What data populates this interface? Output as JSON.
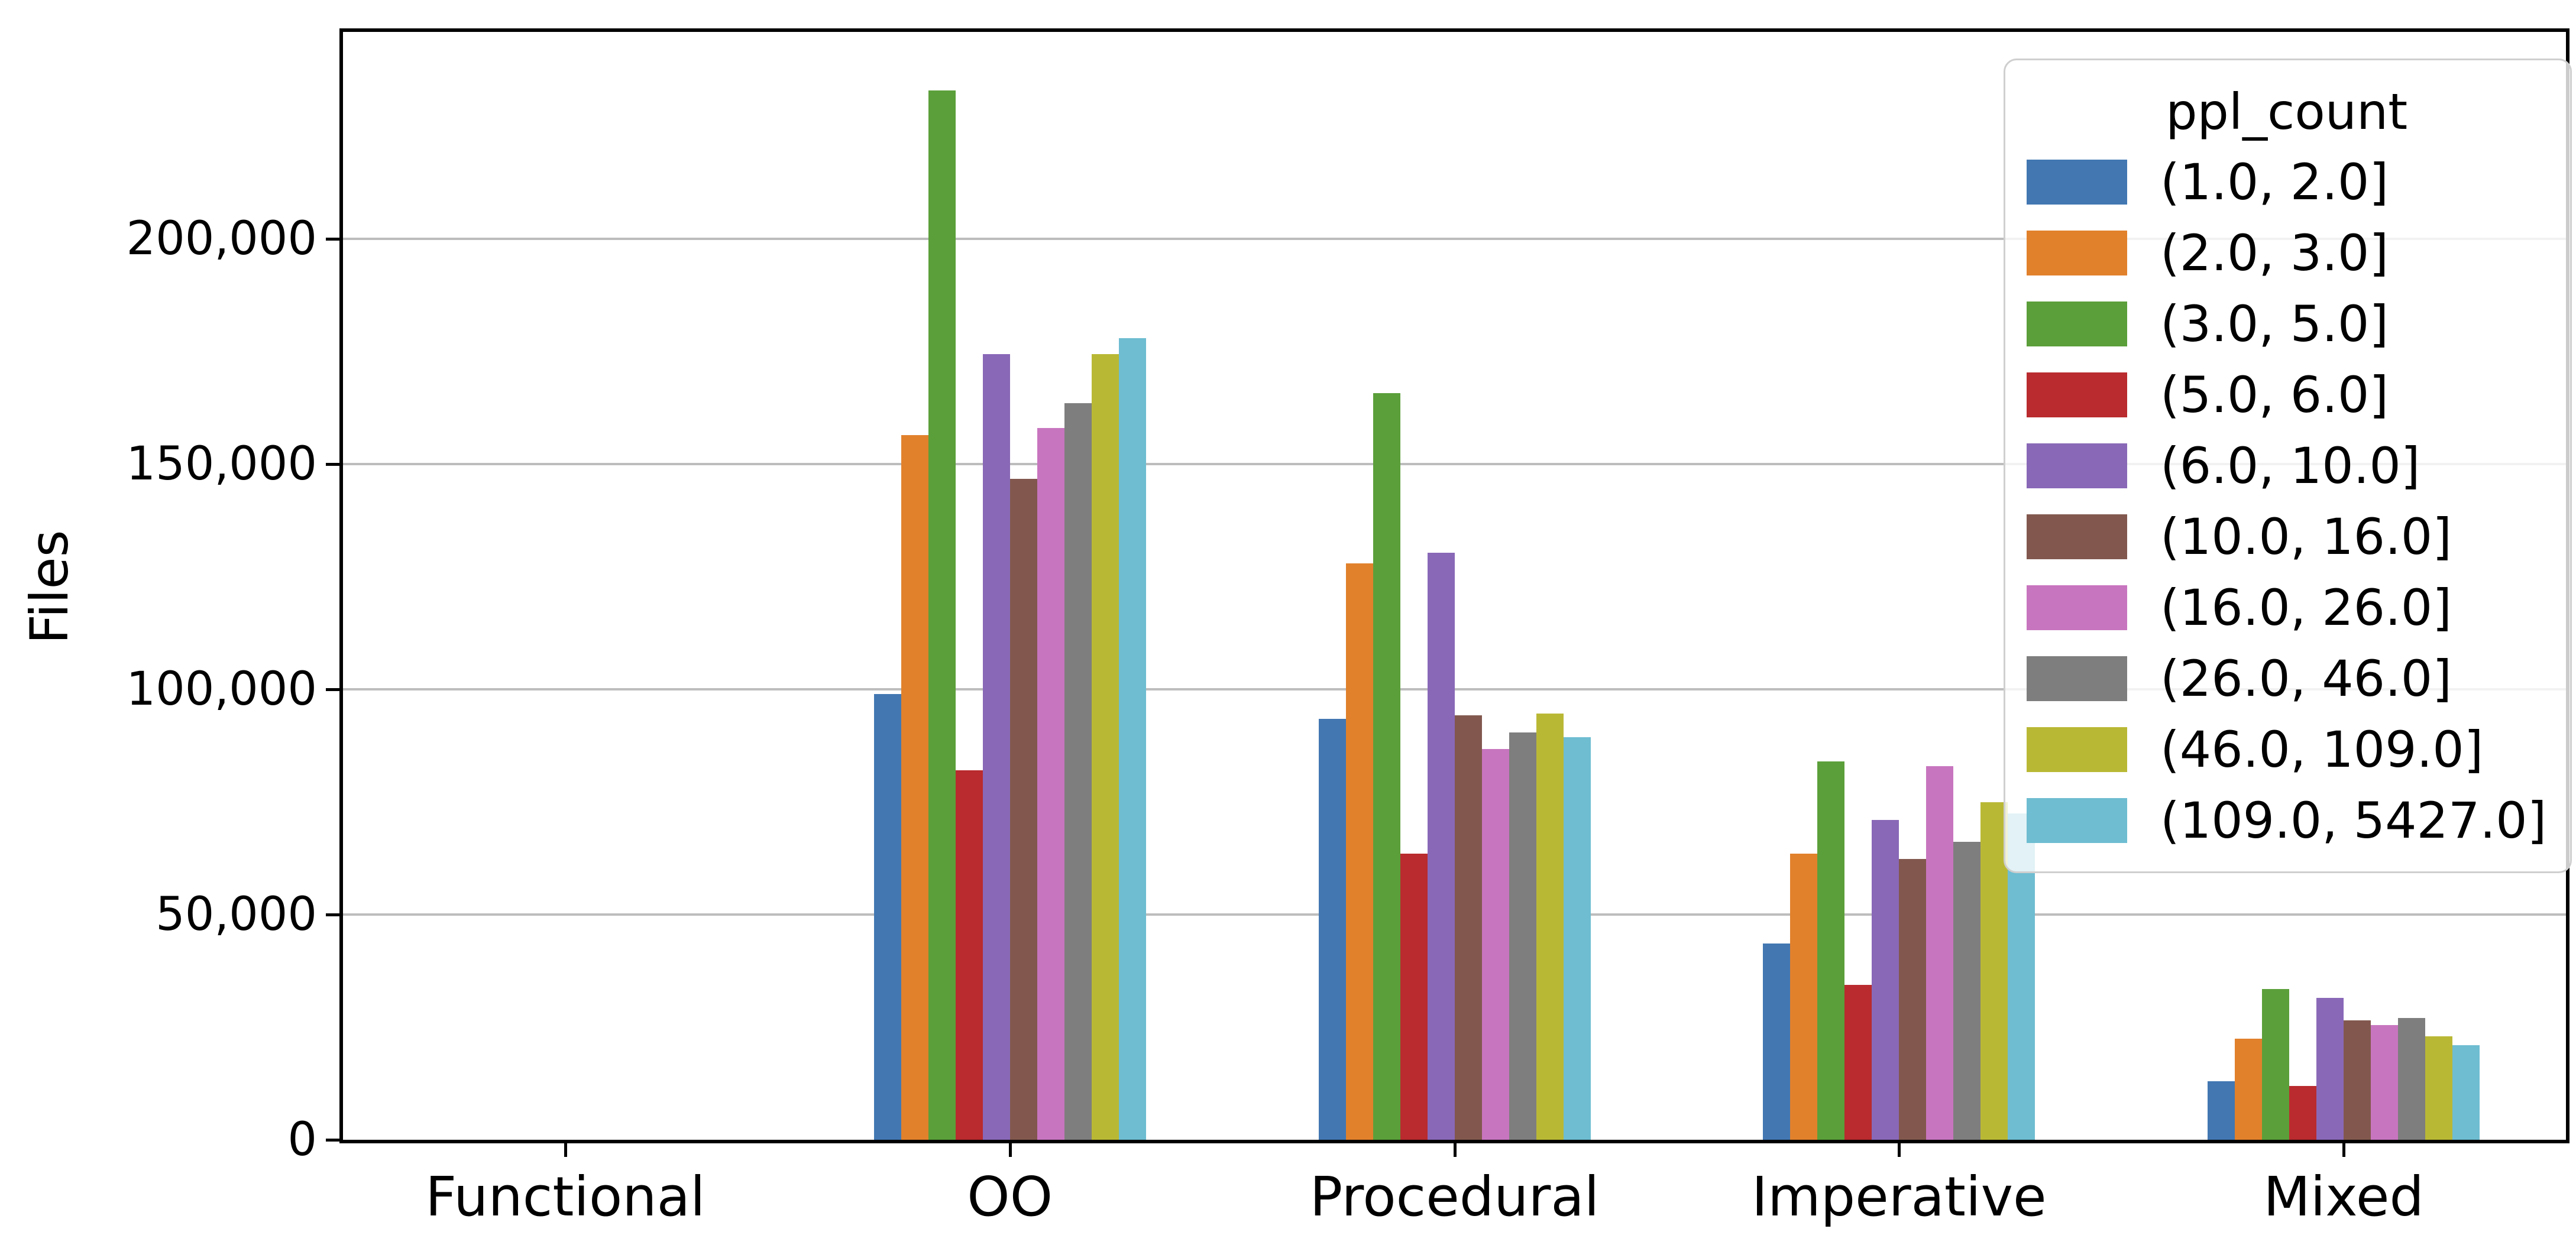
{
  "chart_data": {
    "type": "bar",
    "title": "",
    "xlabel": "",
    "ylabel": "Files",
    "grid": true,
    "legend_title": "ppl_count",
    "legend_position": "upper right",
    "ylim": [
      0,
      246000
    ],
    "yticks": [
      {
        "value": 0,
        "label": "0"
      },
      {
        "value": 50000,
        "label": "50,000"
      },
      {
        "value": 100000,
        "label": "100,000"
      },
      {
        "value": 150000,
        "label": "150,000"
      },
      {
        "value": 200000,
        "label": "200,000"
      }
    ],
    "categories": [
      "Functional",
      "OO",
      "Procedural",
      "Imperative",
      "Mixed"
    ],
    "series": [
      {
        "name": "(1.0, 2.0]",
        "color": "#4277B2",
        "values": [
          0,
          99000,
          93500,
          43600,
          13000
        ]
      },
      {
        "name": "(2.0, 3.0]",
        "color": "#E1812C",
        "values": [
          0,
          156500,
          128000,
          63500,
          22500
        ]
      },
      {
        "name": "(3.0, 5.0]",
        "color": "#5B9F3A",
        "values": [
          0,
          233000,
          165800,
          84000,
          33500
        ]
      },
      {
        "name": "(5.0, 6.0]",
        "color": "#B92B2E",
        "values": [
          0,
          82000,
          63500,
          34400,
          12000
        ]
      },
      {
        "name": "(6.0, 10.0]",
        "color": "#8968B7",
        "values": [
          0,
          174500,
          130300,
          71000,
          31500
        ]
      },
      {
        "name": "(10.0, 16.0]",
        "color": "#82584E",
        "values": [
          0,
          146800,
          94300,
          62300,
          26500
        ]
      },
      {
        "name": "(16.0, 26.0]",
        "color": "#C875BF",
        "values": [
          0,
          158000,
          86800,
          83000,
          25500
        ]
      },
      {
        "name": "(26.0, 46.0]",
        "color": "#7E7E7E",
        "values": [
          0,
          163500,
          90500,
          66100,
          27000
        ]
      },
      {
        "name": "(46.0, 109.0]",
        "color": "#B9B835",
        "values": [
          0,
          174500,
          94600,
          75000,
          23000
        ]
      },
      {
        "name": "(109.0, 5427.0]",
        "color": "#6EBDD1",
        "values": [
          0,
          178000,
          89400,
          72500,
          21000
        ]
      }
    ],
    "colors": {
      "grid": "#bdbdbd",
      "spine": "#000000",
      "legend_border": "#cfcfcf",
      "text": "#000000"
    }
  }
}
